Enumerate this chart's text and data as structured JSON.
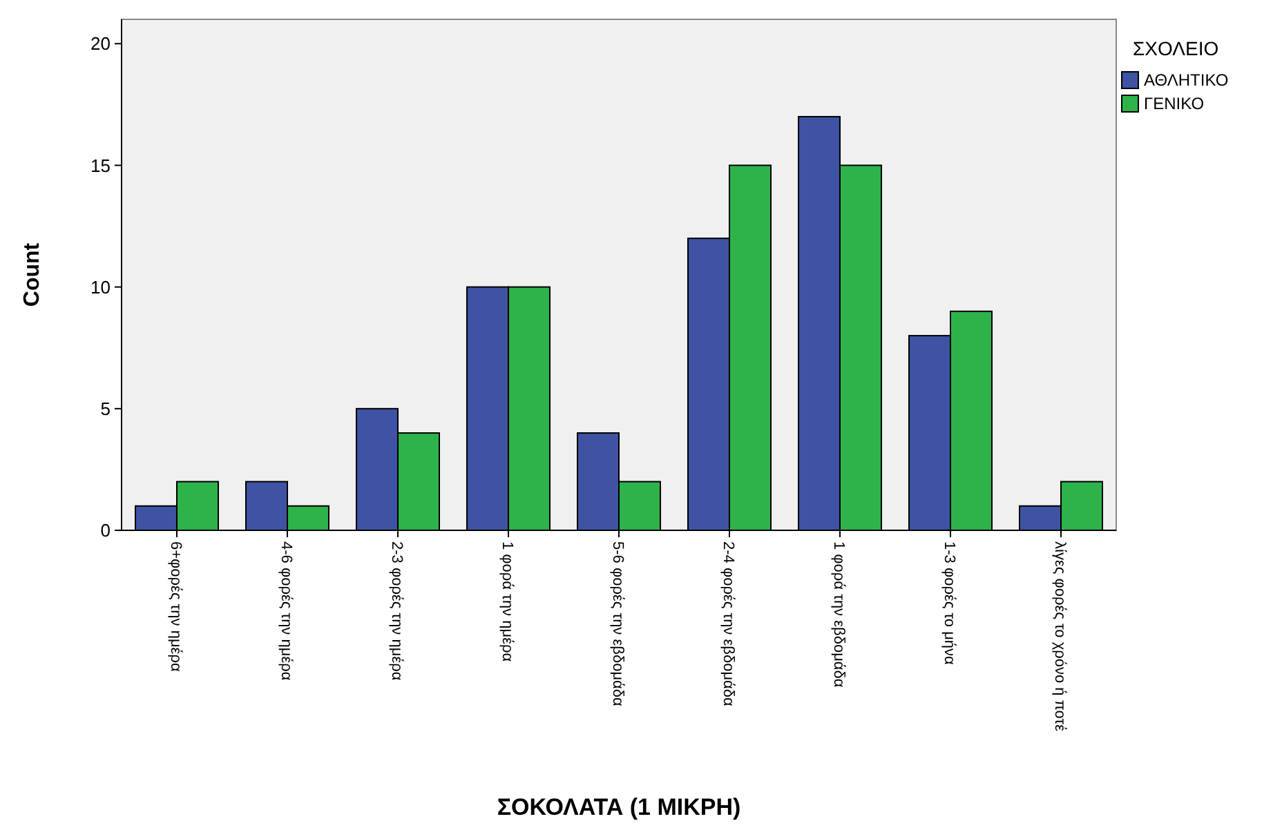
{
  "chart_data": {
    "type": "bar",
    "xlabel": "ΣΟΚΟΛΑΤΑ (1 ΜΙΚΡΗ)",
    "ylabel": "Count",
    "legend_title": "ΣΧΟΛΕΙΟ",
    "legend": "right",
    "categories": [
      "6+φορές την ημέρα",
      "4-6 φορές την ημέρα",
      "2-3 φορές την ημέρα",
      "1 φορά την ημέρα",
      "5-6 φορές την εβδομάδα",
      "2-4 φορές την εβδομάδα",
      "1 φορά την εβδομάδα",
      "1-3 φορές το μήνα",
      "λίγες φορές το χρόνο ή ποτέ"
    ],
    "series": [
      {
        "name": "ΑΘΛΗΤΙΚΟ",
        "color": "#3e53a3",
        "values": [
          1,
          2,
          5,
          10,
          4,
          12,
          17,
          8,
          1
        ]
      },
      {
        "name": "ΓΕΝΙΚΟ",
        "color": "#2db34a",
        "values": [
          2,
          1,
          4,
          10,
          2,
          15,
          15,
          9,
          2
        ]
      }
    ],
    "ylim": [
      0,
      21
    ],
    "yticks": [
      0,
      5,
      10,
      15,
      20
    ],
    "grid": false
  }
}
